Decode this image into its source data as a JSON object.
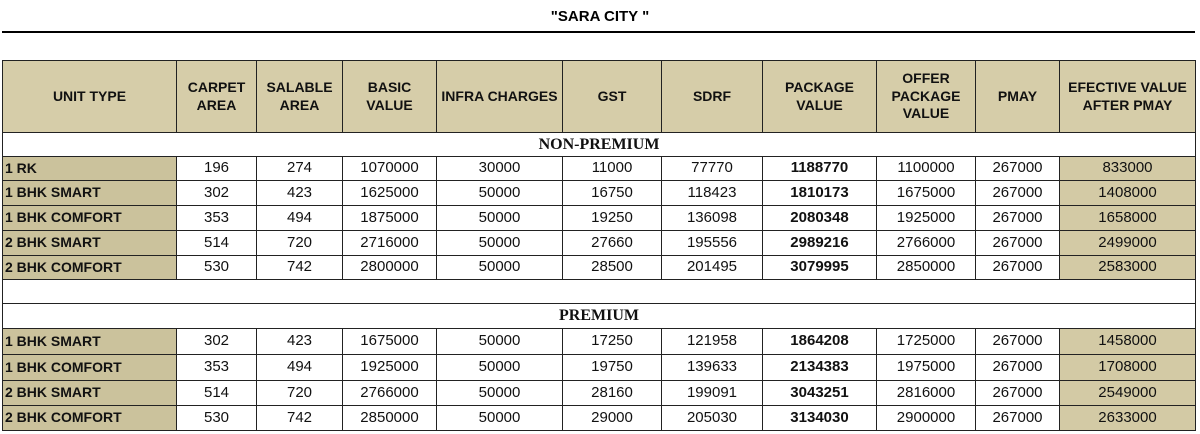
{
  "title": "\"SARA CITY \"",
  "columns": [
    "UNIT TYPE",
    "CARPET AREA",
    "SALABLE AREA",
    "BASIC VALUE",
    "INFRA CHARGES",
    "GST",
    "SDRF",
    "PACKAGE VALUE",
    "OFFER PACKAGE VALUE",
    "PMAY",
    "EFECTIVE VALUE AFTER PMAY"
  ],
  "sections": [
    {
      "name": "NON-PREMIUM",
      "rows": [
        [
          "1 RK",
          196,
          274,
          1070000,
          30000,
          11000,
          77770,
          1188770,
          1100000,
          267000,
          833000
        ],
        [
          "1 BHK SMART",
          302,
          423,
          1625000,
          50000,
          16750,
          118423,
          1810173,
          1675000,
          267000,
          1408000
        ],
        [
          "1 BHK COMFORT",
          353,
          494,
          1875000,
          50000,
          19250,
          136098,
          2080348,
          1925000,
          267000,
          1658000
        ],
        [
          "2 BHK SMART",
          514,
          720,
          2716000,
          50000,
          27660,
          195556,
          2989216,
          2766000,
          267000,
          2499000
        ],
        [
          "2 BHK COMFORT",
          530,
          742,
          2800000,
          50000,
          28500,
          201495,
          3079995,
          2850000,
          267000,
          2583000
        ]
      ]
    },
    {
      "name": "PREMIUM",
      "rows": [
        [
          "1 BHK SMART",
          302,
          423,
          1675000,
          50000,
          17250,
          121958,
          1864208,
          1725000,
          267000,
          1458000
        ],
        [
          "1 BHK COMFORT",
          353,
          494,
          1925000,
          50000,
          19750,
          139633,
          2134383,
          1975000,
          267000,
          1708000
        ],
        [
          "2 BHK SMART",
          514,
          720,
          2766000,
          50000,
          28160,
          199091,
          3043251,
          2816000,
          267000,
          2549000
        ],
        [
          "2 BHK COMFORT",
          530,
          742,
          2850000,
          50000,
          29000,
          205030,
          3134030,
          2900000,
          267000,
          2633000
        ]
      ]
    }
  ]
}
